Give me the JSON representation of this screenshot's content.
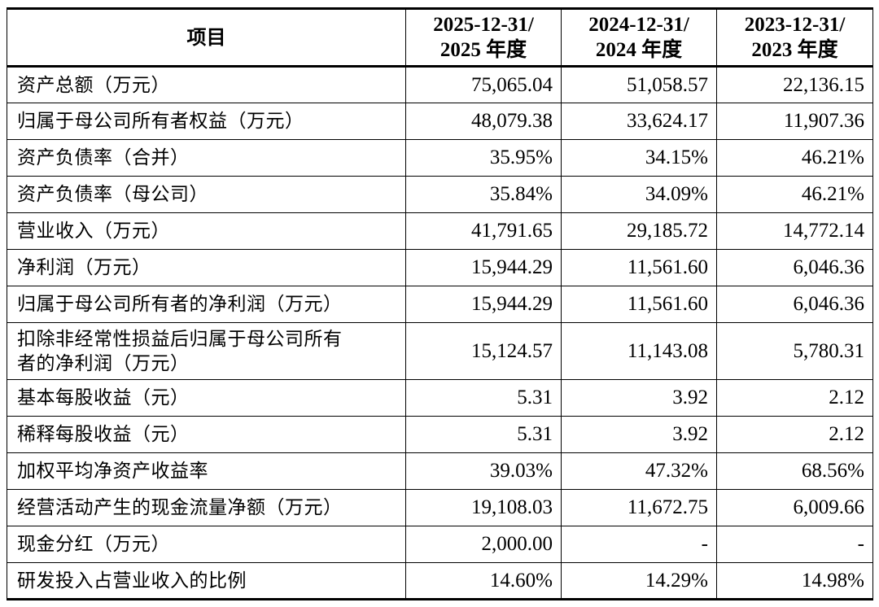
{
  "header": {
    "item": "项目",
    "periods": [
      {
        "line1": "2025-12-31/",
        "line2": "2025 年度"
      },
      {
        "line1": "2024-12-31/",
        "line2": "2024 年度"
      },
      {
        "line1": "2023-12-31/",
        "line2": "2023 年度"
      }
    ]
  },
  "rows": [
    {
      "label": "资产总额（万元）",
      "values": [
        "75,065.04",
        "51,058.57",
        "22,136.15"
      ]
    },
    {
      "label": "归属于母公司所有者权益（万元）",
      "values": [
        "48,079.38",
        "33,624.17",
        "11,907.36"
      ]
    },
    {
      "label": "资产负债率（合并）",
      "values": [
        "35.95%",
        "34.15%",
        "46.21%"
      ]
    },
    {
      "label": "资产负债率（母公司）",
      "values": [
        "35.84%",
        "34.09%",
        "46.21%"
      ]
    },
    {
      "label": "营业收入（万元）",
      "values": [
        "41,791.65",
        "29,185.72",
        "14,772.14"
      ]
    },
    {
      "label": "净利润（万元）",
      "values": [
        "15,944.29",
        "11,561.60",
        "6,046.36"
      ]
    },
    {
      "label": "归属于母公司所有者的净利润（万元）",
      "values": [
        "15,944.29",
        "11,561.60",
        "6,046.36"
      ]
    },
    {
      "label": "扣除非经常性损益后归属于母公司所有",
      "label2": "者的净利润（万元）",
      "values": [
        "15,124.57",
        "11,143.08",
        "5,780.31"
      ]
    },
    {
      "label": "基本每股收益（元）",
      "values": [
        "5.31",
        "3.92",
        "2.12"
      ]
    },
    {
      "label": "稀释每股收益（元）",
      "values": [
        "5.31",
        "3.92",
        "2.12"
      ]
    },
    {
      "label": "加权平均净资产收益率",
      "values": [
        "39.03%",
        "47.32%",
        "68.56%"
      ]
    },
    {
      "label": "经营活动产生的现金流量净额（万元）",
      "values": [
        "19,108.03",
        "11,672.75",
        "6,009.66"
      ]
    },
    {
      "label": "现金分红（万元）",
      "values": [
        "2,000.00",
        "-",
        "-"
      ]
    },
    {
      "label": "研发投入占营业收入的比例",
      "values": [
        "14.60%",
        "14.29%",
        "14.98%"
      ]
    }
  ]
}
